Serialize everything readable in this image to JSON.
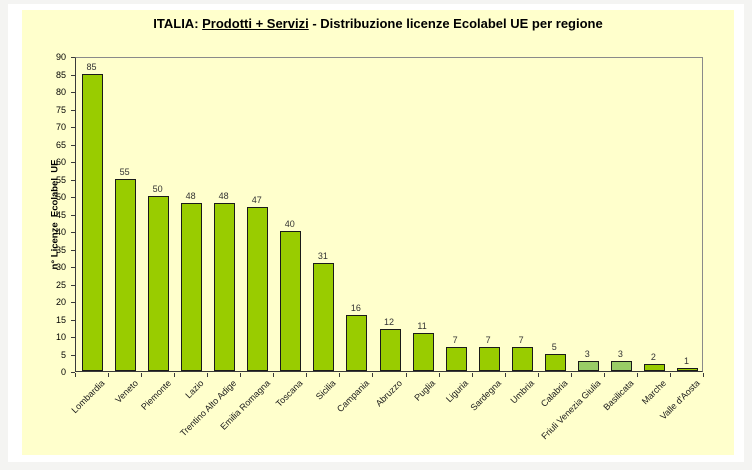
{
  "title": {
    "prefix": "ITALIA: ",
    "underlined": "Prodotti + Servizi",
    "suffix": " - Distribuzione licenze Ecolabel UE per regione"
  },
  "chart_data": {
    "type": "bar",
    "title": "ITALIA: Prodotti + Servizi - Distribuzione licenze Ecolabel UE per regione",
    "xlabel": "",
    "ylabel": "n° Licenze  Ecolabel  UE",
    "ylim": [
      0,
      90
    ],
    "ytick_step": 5,
    "grid": false,
    "legend": false,
    "categories": [
      "Lombardia",
      "Veneto",
      "Piemonte",
      "Lazio",
      "Trentino Alto Adige",
      "Emilia Romagna",
      "Toscana",
      "Sicilia",
      "Campania",
      "Abruzzo",
      "Puglia",
      "Liguria",
      "Sardegna",
      "Umbria",
      "Calabria",
      "Friuli Venezia Giulia",
      "Basilicata",
      "Marche",
      "Valle d'Aosta"
    ],
    "values": [
      85,
      55,
      50,
      48,
      48,
      47,
      40,
      31,
      16,
      12,
      11,
      7,
      7,
      7,
      5,
      3,
      3,
      2,
      1
    ],
    "bar_default_color": "#99CC00",
    "bar_light_color": "#99CC66",
    "light_bar_indices": [
      15,
      16
    ],
    "colors": {
      "plot_background": "#FFFFCC",
      "bar_border": "#1a1a1a",
      "frame_light": "#8a8a8a",
      "axis_dark": "#3a3a3a",
      "value_label": "#333333"
    }
  }
}
